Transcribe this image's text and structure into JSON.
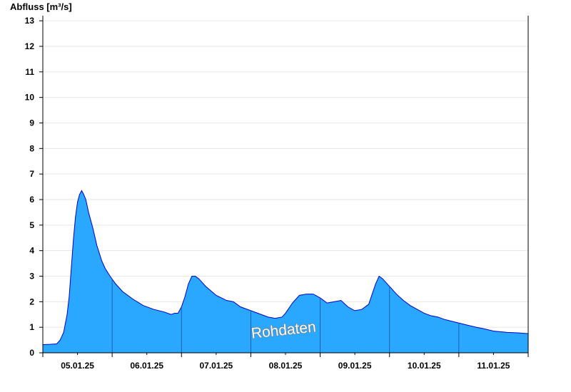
{
  "chart_data": {
    "type": "area",
    "title": "",
    "ylabel": "Abfluss [m³/s]",
    "xlabel": "",
    "watermark": "Rohdaten",
    "ylim": [
      0,
      13.2
    ],
    "yticks": [
      0,
      1,
      2,
      3,
      4,
      5,
      6,
      7,
      8,
      9,
      10,
      11,
      12,
      13
    ],
    "x_start_day": "04.01.25 12:00",
    "x_days": [
      "05.01.25",
      "06.01.25",
      "07.01.25",
      "08.01.25",
      "09.01.25",
      "10.01.25",
      "11.01.25"
    ],
    "grid": true,
    "colors": {
      "fill": "#2aa7ff",
      "line": "#0000cc",
      "grid": "#e6e6e6",
      "axis": "#000000"
    },
    "series": [
      {
        "values": [
          [
            0.0,
            0.32
          ],
          [
            0.1,
            0.33
          ],
          [
            0.2,
            0.35
          ],
          [
            0.25,
            0.5
          ],
          [
            0.3,
            0.8
          ],
          [
            0.35,
            1.5
          ],
          [
            0.38,
            2.2
          ],
          [
            0.41,
            3.3
          ],
          [
            0.44,
            4.4
          ],
          [
            0.47,
            5.3
          ],
          [
            0.5,
            5.9
          ],
          [
            0.53,
            6.2
          ],
          [
            0.56,
            6.35
          ],
          [
            0.59,
            6.2
          ],
          [
            0.62,
            6.0
          ],
          [
            0.66,
            5.5
          ],
          [
            0.72,
            4.9
          ],
          [
            0.78,
            4.2
          ],
          [
            0.85,
            3.6
          ],
          [
            0.9,
            3.3
          ],
          [
            0.97,
            3.0
          ],
          [
            1.05,
            2.7
          ],
          [
            1.15,
            2.4
          ],
          [
            1.3,
            2.1
          ],
          [
            1.45,
            1.85
          ],
          [
            1.6,
            1.7
          ],
          [
            1.75,
            1.6
          ],
          [
            1.85,
            1.5
          ],
          [
            1.9,
            1.55
          ],
          [
            1.95,
            1.55
          ],
          [
            2.0,
            1.8
          ],
          [
            2.05,
            2.2
          ],
          [
            2.1,
            2.7
          ],
          [
            2.15,
            3.0
          ],
          [
            2.2,
            3.0
          ],
          [
            2.25,
            2.9
          ],
          [
            2.35,
            2.6
          ],
          [
            2.5,
            2.25
          ],
          [
            2.65,
            2.05
          ],
          [
            2.75,
            2.0
          ],
          [
            2.85,
            1.8
          ],
          [
            3.0,
            1.65
          ],
          [
            3.15,
            1.5
          ],
          [
            3.25,
            1.4
          ],
          [
            3.35,
            1.35
          ],
          [
            3.45,
            1.4
          ],
          [
            3.5,
            1.55
          ],
          [
            3.6,
            1.95
          ],
          [
            3.7,
            2.25
          ],
          [
            3.8,
            2.3
          ],
          [
            3.9,
            2.3
          ],
          [
            4.0,
            2.15
          ],
          [
            4.1,
            1.95
          ],
          [
            4.2,
            2.0
          ],
          [
            4.3,
            2.05
          ],
          [
            4.4,
            1.8
          ],
          [
            4.5,
            1.65
          ],
          [
            4.6,
            1.7
          ],
          [
            4.7,
            1.9
          ],
          [
            4.75,
            2.3
          ],
          [
            4.8,
            2.7
          ],
          [
            4.85,
            3.0
          ],
          [
            4.9,
            2.9
          ],
          [
            5.0,
            2.6
          ],
          [
            5.1,
            2.3
          ],
          [
            5.2,
            2.05
          ],
          [
            5.3,
            1.85
          ],
          [
            5.4,
            1.7
          ],
          [
            5.5,
            1.55
          ],
          [
            5.6,
            1.45
          ],
          [
            5.7,
            1.4
          ],
          [
            5.8,
            1.3
          ],
          [
            5.95,
            1.2
          ],
          [
            6.1,
            1.1
          ],
          [
            6.25,
            1.0
          ],
          [
            6.35,
            0.95
          ],
          [
            6.5,
            0.85
          ],
          [
            6.7,
            0.8
          ],
          [
            6.85,
            0.78
          ],
          [
            7.0,
            0.75
          ]
        ]
      }
    ]
  }
}
